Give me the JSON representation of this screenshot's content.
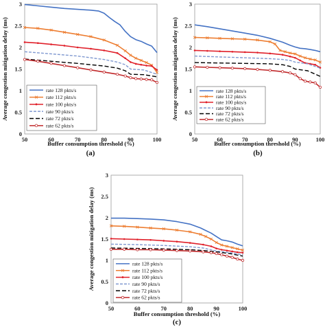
{
  "colors": {
    "rate128": "#4472c4",
    "rate112": "#ed7d31",
    "rate100": "#e0202a",
    "rate90": "#7f98d0",
    "rate72": "#000000",
    "rate62": "#c0282a"
  },
  "chart_data": [
    {
      "type": "line",
      "panel_label": "(a)",
      "xlabel": "Buffer consumption threshold (%)",
      "ylabel": "Average congestion mitigation delay (ms)",
      "xlim": [
        50,
        100
      ],
      "ylim": [
        0,
        3
      ],
      "xticks": [
        50,
        60,
        70,
        80,
        90,
        100
      ],
      "yticks": [
        0,
        0.5,
        1,
        1.5,
        2,
        2.5,
        3
      ],
      "legend_position": "bottom-left",
      "grid": false,
      "series": [
        {
          "name": "rate 128 pkts/s",
          "color_key": "rate128",
          "style": "solid",
          "marker": "none",
          "x": [
            50,
            55,
            60,
            65,
            70,
            75,
            78,
            80,
            82,
            84,
            86,
            88,
            90,
            92,
            94,
            96,
            98,
            100
          ],
          "y": [
            2.99,
            2.96,
            2.93,
            2.9,
            2.88,
            2.86,
            2.84,
            2.79,
            2.69,
            2.6,
            2.52,
            2.37,
            2.25,
            2.18,
            2.14,
            2.08,
            2.03,
            1.88
          ]
        },
        {
          "name": "rate 112 pkts/s",
          "color_key": "rate112",
          "style": "solid",
          "marker": "x",
          "x": [
            50,
            55,
            60,
            65,
            70,
            75,
            80,
            85,
            88,
            90,
            92,
            94,
            96,
            98,
            100
          ],
          "y": [
            2.46,
            2.44,
            2.4,
            2.35,
            2.3,
            2.25,
            2.17,
            2.05,
            1.92,
            1.82,
            1.75,
            1.7,
            1.65,
            1.59,
            1.42
          ]
        },
        {
          "name": "rate 100 pkts/s",
          "color_key": "rate100",
          "style": "solid",
          "marker": "dot",
          "x": [
            50,
            55,
            60,
            65,
            70,
            75,
            80,
            85,
            88,
            90,
            92,
            94,
            96,
            98,
            100
          ],
          "y": [
            2.12,
            2.1,
            2.07,
            2.04,
            2.0,
            1.97,
            1.93,
            1.87,
            1.75,
            1.66,
            1.62,
            1.6,
            1.58,
            1.57,
            1.48
          ]
        },
        {
          "name": "rate 90 pkts/s",
          "color_key": "rate90",
          "style": "dashed",
          "marker": "none",
          "x": [
            50,
            60,
            70,
            80,
            85,
            88,
            90,
            95,
            100
          ],
          "y": [
            1.9,
            1.85,
            1.8,
            1.72,
            1.66,
            1.6,
            1.5,
            1.48,
            1.38
          ]
        },
        {
          "name": "rate 72 pkts/s",
          "color_key": "rate72",
          "style": "dashed",
          "marker": "none",
          "x": [
            50,
            60,
            70,
            80,
            85,
            88,
            90,
            95,
            100
          ],
          "y": [
            1.73,
            1.68,
            1.63,
            1.57,
            1.52,
            1.46,
            1.38,
            1.37,
            1.32
          ]
        },
        {
          "name": "rate 62 pkts/s",
          "color_key": "rate62",
          "style": "solid",
          "marker": "circle",
          "x": [
            50,
            55,
            60,
            65,
            70,
            75,
            80,
            85,
            88,
            90,
            92,
            94,
            96,
            98,
            100
          ],
          "y": [
            1.72,
            1.68,
            1.63,
            1.58,
            1.53,
            1.48,
            1.43,
            1.38,
            1.34,
            1.3,
            1.28,
            1.27,
            1.26,
            1.25,
            1.19
          ]
        }
      ]
    },
    {
      "type": "line",
      "panel_label": "(b)",
      "xlabel": "Buffer consumption threshold (%)",
      "ylabel": "Average congestion mitigation delay (ms)",
      "xlim": [
        50,
        100
      ],
      "ylim": [
        0,
        3
      ],
      "xticks": [
        50,
        60,
        70,
        80,
        90,
        100
      ],
      "yticks": [
        0,
        0.5,
        1,
        1.5,
        2,
        2.5,
        3
      ],
      "legend_position": "bottom-left",
      "grid": false,
      "series": [
        {
          "name": "rate 128 pkts/s",
          "color_key": "rate128",
          "style": "solid",
          "marker": "none",
          "x": [
            50,
            55,
            60,
            65,
            70,
            75,
            80,
            85,
            88,
            90,
            92,
            94,
            96,
            98,
            100
          ],
          "y": [
            2.52,
            2.48,
            2.43,
            2.38,
            2.33,
            2.28,
            2.21,
            2.12,
            2.05,
            2.01,
            1.98,
            1.97,
            1.95,
            1.93,
            1.9
          ]
        },
        {
          "name": "rate 112 pkts/s",
          "color_key": "rate112",
          "style": "solid",
          "marker": "x",
          "x": [
            50,
            55,
            60,
            65,
            70,
            75,
            80,
            82,
            84,
            86,
            88,
            90,
            92,
            94,
            96,
            98,
            100
          ],
          "y": [
            2.23,
            2.22,
            2.21,
            2.2,
            2.19,
            2.17,
            2.13,
            2.08,
            1.93,
            1.9,
            1.87,
            1.85,
            1.8,
            1.76,
            1.73,
            1.71,
            1.66
          ]
        },
        {
          "name": "rate 100 pkts/s",
          "color_key": "rate100",
          "style": "solid",
          "marker": "dot",
          "x": [
            50,
            55,
            60,
            65,
            70,
            75,
            80,
            85,
            88,
            90,
            92,
            94,
            96,
            98,
            100
          ],
          "y": [
            1.93,
            1.92,
            1.91,
            1.9,
            1.89,
            1.88,
            1.86,
            1.83,
            1.79,
            1.76,
            1.7,
            1.64,
            1.62,
            1.6,
            1.53
          ]
        },
        {
          "name": "rate 90 pkts/s",
          "color_key": "rate90",
          "style": "dashed",
          "marker": "none",
          "x": [
            50,
            60,
            70,
            80,
            85,
            88,
            90,
            95,
            100
          ],
          "y": [
            1.8,
            1.78,
            1.76,
            1.74,
            1.72,
            1.7,
            1.66,
            1.62,
            1.52
          ]
        },
        {
          "name": "rate 72 pkts/s",
          "color_key": "rate72",
          "style": "dashed",
          "marker": "none",
          "x": [
            50,
            60,
            70,
            80,
            85,
            88,
            90,
            95,
            100
          ],
          "y": [
            1.65,
            1.64,
            1.63,
            1.62,
            1.6,
            1.56,
            1.5,
            1.46,
            1.33
          ]
        },
        {
          "name": "rate 62 pkts/s",
          "color_key": "rate62",
          "style": "solid",
          "marker": "circle",
          "x": [
            50,
            55,
            60,
            65,
            70,
            75,
            80,
            85,
            88,
            90,
            92,
            94,
            96,
            98,
            100
          ],
          "y": [
            1.55,
            1.54,
            1.53,
            1.52,
            1.51,
            1.49,
            1.47,
            1.44,
            1.41,
            1.37,
            1.28,
            1.22,
            1.2,
            1.18,
            1.08
          ]
        }
      ]
    },
    {
      "type": "line",
      "panel_label": "(c)",
      "xlabel": "Buffer consumption threshold (%)",
      "ylabel": "Average congestion mitigation delay (ms)",
      "xlim": [
        50,
        100
      ],
      "ylim": [
        0,
        3
      ],
      "xticks": [
        50,
        60,
        70,
        80,
        90,
        100
      ],
      "yticks": [
        0,
        0.5,
        1,
        1.5,
        2,
        2.5,
        3
      ],
      "legend_position": "bottom-left",
      "grid": false,
      "series": [
        {
          "name": "rate 128 pkts/s",
          "color_key": "rate128",
          "style": "solid",
          "marker": "none",
          "x": [
            50,
            55,
            60,
            65,
            70,
            75,
            80,
            84,
            86,
            88,
            90,
            92,
            94,
            96,
            98,
            100
          ],
          "y": [
            1.99,
            1.99,
            1.98,
            1.97,
            1.95,
            1.91,
            1.85,
            1.76,
            1.7,
            1.64,
            1.56,
            1.48,
            1.46,
            1.43,
            1.38,
            1.34
          ]
        },
        {
          "name": "rate 112 pkts/s",
          "color_key": "rate112",
          "style": "solid",
          "marker": "x",
          "x": [
            50,
            55,
            60,
            65,
            70,
            75,
            80,
            84,
            86,
            88,
            90,
            92,
            94,
            96,
            98,
            100
          ],
          "y": [
            1.81,
            1.8,
            1.78,
            1.76,
            1.74,
            1.71,
            1.67,
            1.61,
            1.56,
            1.5,
            1.42,
            1.36,
            1.33,
            1.3,
            1.27,
            1.24
          ]
        },
        {
          "name": "rate 100 pkts/s",
          "color_key": "rate100",
          "style": "solid",
          "marker": "dot",
          "x": [
            50,
            55,
            60,
            65,
            70,
            75,
            80,
            85,
            88,
            90,
            92,
            94,
            96,
            98,
            100
          ],
          "y": [
            1.51,
            1.5,
            1.49,
            1.48,
            1.46,
            1.44,
            1.41,
            1.37,
            1.33,
            1.28,
            1.25,
            1.23,
            1.21,
            1.19,
            1.18
          ]
        },
        {
          "name": "rate 90 pkts/s",
          "color_key": "rate90",
          "style": "dashed",
          "marker": "none",
          "x": [
            50,
            60,
            70,
            80,
            85,
            90,
            95,
            100
          ],
          "y": [
            1.38,
            1.37,
            1.35,
            1.32,
            1.29,
            1.22,
            1.18,
            1.13
          ]
        },
        {
          "name": "rate 72 pkts/s",
          "color_key": "rate72",
          "style": "dashed",
          "marker": "none",
          "x": [
            50,
            60,
            70,
            80,
            85,
            90,
            95,
            100
          ],
          "y": [
            1.29,
            1.28,
            1.27,
            1.25,
            1.23,
            1.2,
            1.16,
            1.1
          ]
        },
        {
          "name": "rate 62 pkts/s",
          "color_key": "rate62",
          "style": "solid",
          "marker": "circle",
          "x": [
            50,
            55,
            60,
            65,
            70,
            75,
            80,
            85,
            88,
            90,
            92,
            94,
            96,
            98,
            100
          ],
          "y": [
            1.26,
            1.26,
            1.25,
            1.25,
            1.24,
            1.23,
            1.22,
            1.2,
            1.18,
            1.16,
            1.13,
            1.1,
            1.07,
            1.03,
            1.0
          ]
        }
      ]
    }
  ]
}
